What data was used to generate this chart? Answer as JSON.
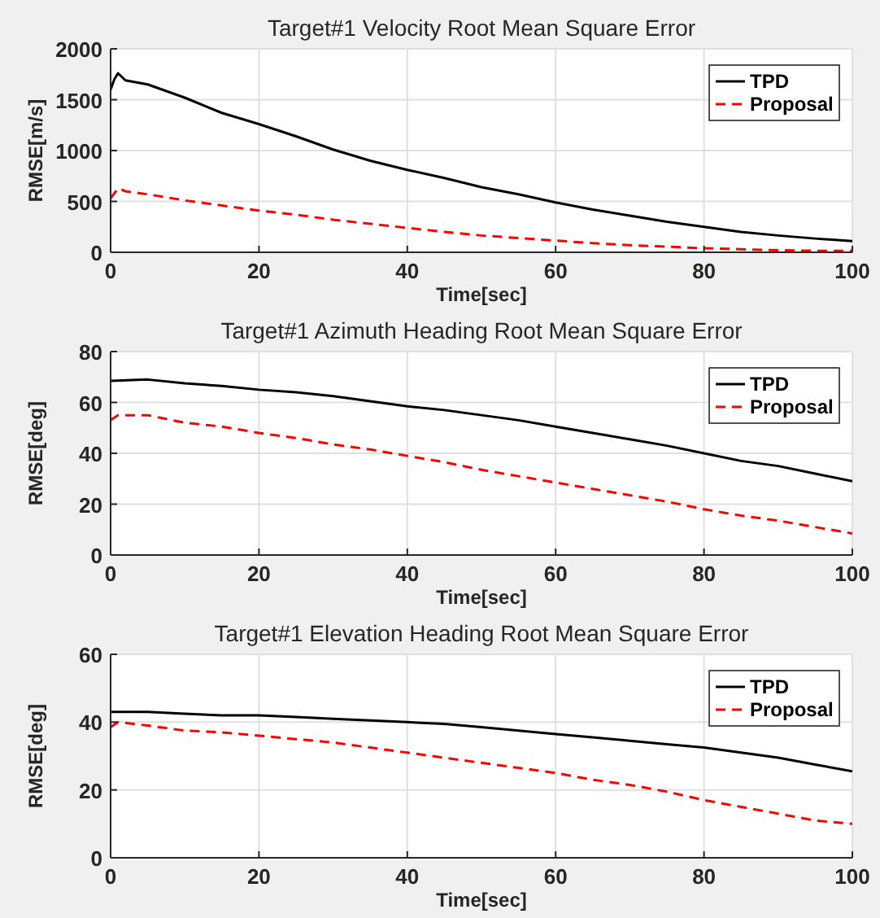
{
  "chart_data": [
    {
      "type": "line",
      "title": "Target#1 Velocity Root Mean Square Error",
      "xlabel": "Time[sec]",
      "ylabel": "RMSE[m/s]",
      "xlim": [
        0,
        100
      ],
      "ylim": [
        0,
        2000
      ],
      "xticks": [
        0,
        20,
        40,
        60,
        80,
        100
      ],
      "yticks": [
        0,
        500,
        1000,
        1500,
        2000
      ],
      "grid": true,
      "legend": "top right",
      "series": [
        {
          "name": "TPD",
          "color": "#000000",
          "line_style": "solid",
          "x": [
            0,
            0.5,
            1,
            2,
            5,
            10,
            15,
            20,
            25,
            30,
            35,
            40,
            45,
            50,
            55,
            60,
            65,
            70,
            75,
            80,
            85,
            90,
            95,
            100
          ],
          "values": [
            1600,
            1700,
            1760,
            1690,
            1650,
            1520,
            1370,
            1260,
            1140,
            1010,
            900,
            810,
            730,
            640,
            570,
            490,
            420,
            360,
            300,
            250,
            200,
            165,
            135,
            110
          ]
        },
        {
          "name": "Proposal",
          "color": "#ff0000",
          "line_style": "dashed",
          "x": [
            0,
            1,
            2,
            5,
            10,
            15,
            20,
            25,
            30,
            35,
            40,
            45,
            50,
            55,
            60,
            65,
            70,
            75,
            80,
            85,
            90,
            95,
            100
          ],
          "values": [
            530,
            630,
            600,
            570,
            510,
            460,
            410,
            370,
            320,
            280,
            240,
            200,
            165,
            140,
            115,
            90,
            70,
            55,
            40,
            30,
            20,
            15,
            15
          ]
        }
      ]
    },
    {
      "type": "line",
      "title": "Target#1 Azimuth Heading Root Mean Square Error",
      "xlabel": "Time[sec]",
      "ylabel": "RMSE[deg]",
      "xlim": [
        0,
        100
      ],
      "ylim": [
        0,
        80
      ],
      "xticks": [
        0,
        20,
        40,
        60,
        80,
        100
      ],
      "yticks": [
        0,
        20,
        40,
        60,
        80
      ],
      "grid": true,
      "legend": "top right",
      "series": [
        {
          "name": "TPD",
          "color": "#000000",
          "line_style": "solid",
          "x": [
            0,
            5,
            10,
            15,
            20,
            25,
            30,
            35,
            40,
            45,
            50,
            55,
            60,
            65,
            70,
            75,
            80,
            85,
            90,
            95,
            100
          ],
          "values": [
            68.5,
            69,
            67.5,
            66.5,
            65,
            64,
            62.5,
            60.5,
            58.5,
            57,
            55,
            53,
            50.5,
            48,
            45.5,
            43,
            40,
            37,
            35,
            32,
            29
          ]
        },
        {
          "name": "Proposal",
          "color": "#ff0000",
          "line_style": "dashed",
          "x": [
            0,
            1,
            5,
            10,
            15,
            20,
            25,
            30,
            35,
            40,
            45,
            50,
            55,
            60,
            65,
            70,
            75,
            80,
            85,
            90,
            95,
            100
          ],
          "values": [
            53,
            55,
            55,
            52,
            50.5,
            48,
            46,
            43.5,
            41.5,
            39,
            36.5,
            33.5,
            31,
            28.5,
            26,
            23.5,
            21,
            18,
            15.5,
            13.5,
            11,
            8.5
          ]
        }
      ]
    },
    {
      "type": "line",
      "title": "Target#1 Elevation Heading Root Mean Square Error",
      "xlabel": "Time[sec]",
      "ylabel": "RMSE[deg]",
      "xlim": [
        0,
        100
      ],
      "ylim": [
        0,
        60
      ],
      "xticks": [
        0,
        20,
        40,
        60,
        80,
        100
      ],
      "yticks": [
        0,
        20,
        40,
        60
      ],
      "grid": true,
      "legend": "top right",
      "series": [
        {
          "name": "TPD",
          "color": "#000000",
          "line_style": "solid",
          "x": [
            0,
            5,
            10,
            15,
            20,
            25,
            30,
            35,
            40,
            45,
            50,
            55,
            60,
            65,
            70,
            75,
            80,
            85,
            90,
            95,
            100
          ],
          "values": [
            43,
            43,
            42.5,
            42,
            42,
            41.5,
            41,
            40.5,
            40,
            39.5,
            38.5,
            37.5,
            36.5,
            35.5,
            34.5,
            33.5,
            32.5,
            31,
            29.5,
            27.5,
            25.5
          ]
        },
        {
          "name": "Proposal",
          "color": "#ff0000",
          "line_style": "dashed",
          "x": [
            0,
            1,
            5,
            10,
            15,
            20,
            25,
            30,
            35,
            40,
            45,
            50,
            55,
            60,
            65,
            70,
            75,
            80,
            85,
            90,
            95,
            100
          ],
          "values": [
            38.5,
            40,
            39,
            37.5,
            37,
            36,
            35,
            34,
            32.5,
            31,
            29.5,
            28,
            26.5,
            25,
            23,
            21.5,
            19.5,
            17,
            15,
            13,
            11,
            10
          ]
        }
      ]
    }
  ]
}
